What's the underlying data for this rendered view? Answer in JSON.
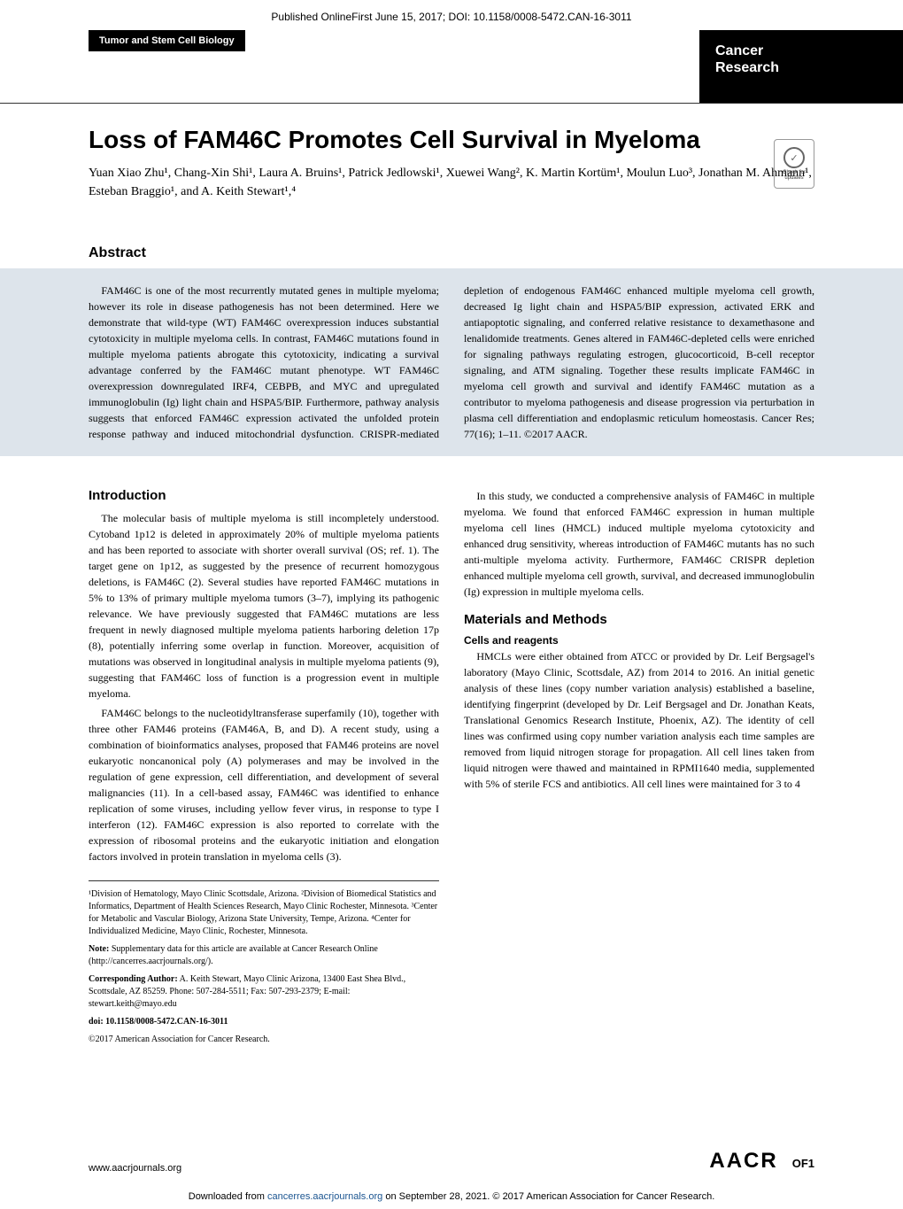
{
  "header": {
    "published_online": "Published OnlineFirst June 15, 2017; DOI: 10.1158/0008-5472.CAN-16-3011",
    "section_label": "Tumor and Stem Cell Biology",
    "journal_line1": "Cancer",
    "journal_line2": "Research"
  },
  "title_area": {
    "title": "Loss of FAM46C Promotes Cell Survival in Myeloma",
    "authors": "Yuan Xiao Zhu¹, Chang-Xin Shi¹, Laura A. Bruins¹, Patrick Jedlowski¹, Xuewei Wang², K. Martin Kortüm¹, Moulun Luo³, Jonathan M. Ahmann¹, Esteban Braggio¹, and A. Keith Stewart¹,⁴",
    "check_updates": "Check for updates"
  },
  "abstract": {
    "label": "Abstract",
    "text": "FAM46C is one of the most recurrently mutated genes in multiple myeloma; however its role in disease pathogenesis has not been determined. Here we demonstrate that wild-type (WT) FAM46C overexpression induces substantial cytotoxicity in multiple myeloma cells. In contrast, FAM46C mutations found in multiple myeloma patients abrogate this cytotoxicity, indicating a survival advantage conferred by the FAM46C mutant phenotype. WT FAM46C overexpression downregulated IRF4, CEBPB, and MYC and upregulated immunoglobulin (Ig) light chain and HSPA5/BIP. Furthermore, pathway analysis suggests that enforced FAM46C expression activated the unfolded protein response pathway and induced mitochondrial dysfunction. CRISPR-mediated depletion of endogenous FAM46C enhanced multiple myeloma cell growth, decreased Ig light chain and HSPA5/BIP expression, activated ERK and antiapoptotic signaling, and conferred relative resistance to dexamethasone and lenalidomide treatments. Genes altered in FAM46C-depleted cells were enriched for signaling pathways regulating estrogen, glucocorticoid, B-cell receptor signaling, and ATM signaling. Together these results implicate FAM46C in myeloma cell growth and survival and identify FAM46C mutation as a contributor to myeloma pathogenesis and disease progression via perturbation in plasma cell differentiation and endoplasmic reticulum homeostasis. Cancer Res; 77(16); 1–11. ©2017 AACR."
  },
  "body": {
    "intro_label": "Introduction",
    "intro_p1": "The molecular basis of multiple myeloma is still incompletely understood. Cytoband 1p12 is deleted in approximately 20% of multiple myeloma patients and has been reported to associate with shorter overall survival (OS; ref. 1). The target gene on 1p12, as suggested by the presence of recurrent homozygous deletions, is FAM46C (2). Several studies have reported FAM46C mutations in 5% to 13% of primary multiple myeloma tumors (3–7), implying its pathogenic relevance. We have previously suggested that FAM46C mutations are less frequent in newly diagnosed multiple myeloma patients harboring deletion 17p (8), potentially inferring some overlap in function. Moreover, acquisition of mutations was observed in longitudinal analysis in multiple myeloma patients (9), suggesting that FAM46C loss of function is a progression event in multiple myeloma.",
    "intro_p2": "FAM46C belongs to the nucleotidyltransferase superfamily (10), together with three other FAM46 proteins (FAM46A, B, and D). A recent study, using a combination of bioinformatics analyses, proposed that FAM46 proteins are novel eukaryotic noncanonical poly (A) polymerases and may be involved in the regulation of gene expression, cell differentiation, and development of several malignancies (11). In a cell-based assay, FAM46C was identified to enhance replication of some viruses, including yellow fever virus, in response to type I interferon (12). FAM46C expression is also reported to correlate with the expression of ribosomal proteins and the eukaryotic initiation and elongation factors involved in protein translation in myeloma cells (3).",
    "intro_p3": "In this study, we conducted a comprehensive analysis of FAM46C in multiple myeloma. We found that enforced FAM46C expression in human multiple myeloma cell lines (HMCL) induced multiple myeloma cytotoxicity and enhanced drug sensitivity, whereas introduction of FAM46C mutants has no such anti-multiple myeloma activity. Furthermore, FAM46C CRISPR depletion enhanced multiple myeloma cell growth, survival, and decreased immunoglobulin (Ig) expression in multiple myeloma cells.",
    "methods_label": "Materials and Methods",
    "cells_label": "Cells and reagents",
    "methods_p1": "HMCLs were either obtained from ATCC or provided by Dr. Leif Bergsagel's laboratory (Mayo Clinic, Scottsdale, AZ) from 2014 to 2016. An initial genetic analysis of these lines (copy number variation analysis) established a baseline, identifying fingerprint (developed by Dr. Leif Bergsagel and Dr. Jonathan Keats, Translational Genomics Research Institute, Phoenix, AZ). The identity of cell lines was confirmed using copy number variation analysis each time samples are removed from liquid nitrogen storage for propagation. All cell lines taken from liquid nitrogen were thawed and maintained in RPMI1640 media, supplemented with 5% of sterile FCS and antibiotics. All cell lines were maintained for 3 to 4"
  },
  "footnotes": {
    "affiliations": "¹Division of Hematology, Mayo Clinic Scottsdale, Arizona. ²Division of Biomedical Statistics and Informatics, Department of Health Sciences Research, Mayo Clinic Rochester, Minnesota. ³Center for Metabolic and Vascular Biology, Arizona State University, Tempe, Arizona. ⁴Center for Individualized Medicine, Mayo Clinic, Rochester, Minnesota.",
    "note": "Note: Supplementary data for this article are available at Cancer Research Online (http://cancerres.aacrjournals.org/).",
    "corresponding": "Corresponding Author: A. Keith Stewart, Mayo Clinic Arizona, 13400 East Shea Blvd., Scottsdale, AZ 85259. Phone: 507-284-5511; Fax: 507-293-2379; E-mail: stewart.keith@mayo.edu",
    "doi": "doi: 10.1158/0008-5472.CAN-16-3011",
    "copyright": "©2017 American Association for Cancer Research."
  },
  "footer": {
    "url": "www.aacrjournals.org",
    "aacr_logo": "AACR",
    "page_num": "OF1",
    "download_note_pre": "Downloaded from ",
    "download_link_text": "cancerres.aacrjournals.org",
    "download_note_post": " on September 28, 2021. © 2017 American Association for Cancer Research."
  }
}
